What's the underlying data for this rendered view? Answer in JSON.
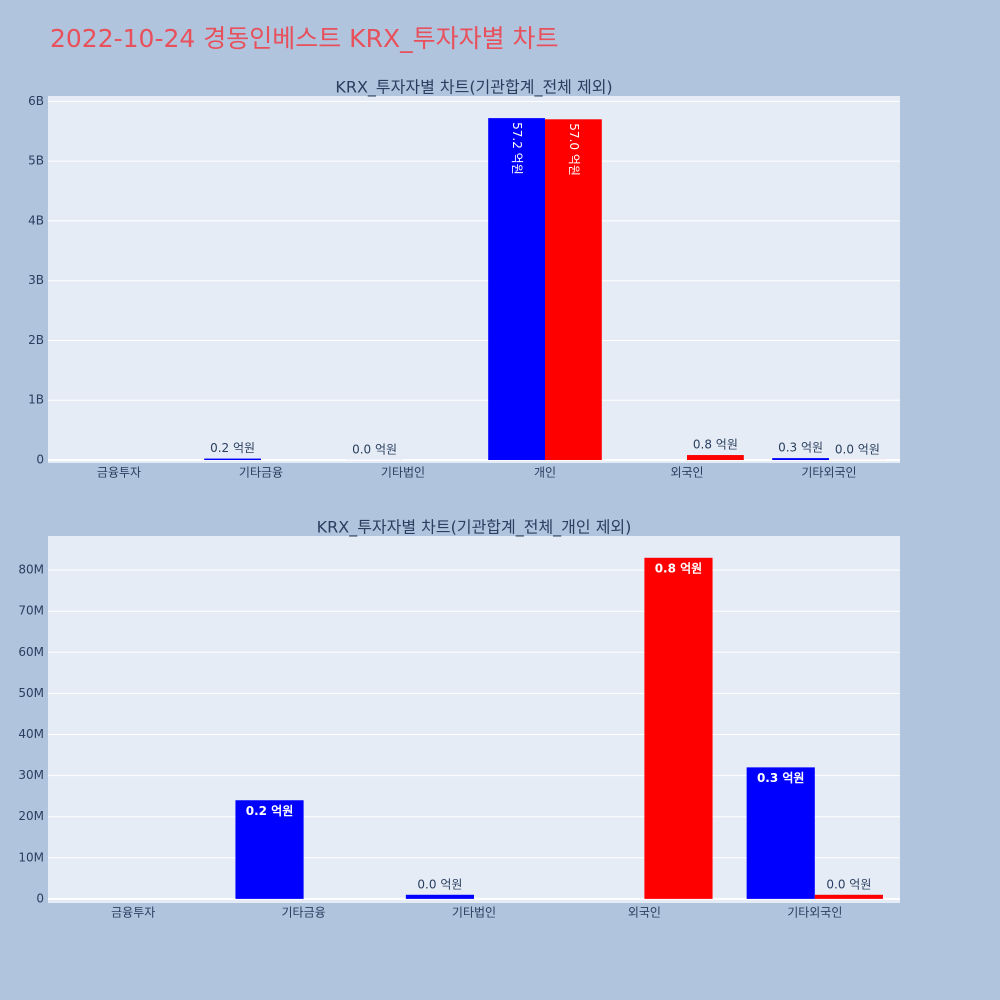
{
  "title": "2022-10-24 경동인베스트 KRX_투자자별 차트",
  "chart_data": [
    {
      "type": "bar",
      "title": "KRX_투자자별 차트(기관합계_전체 제외)",
      "categories": [
        "금융투자",
        "기타금융",
        "기타법인",
        "개인",
        "외국인",
        "기타외국인"
      ],
      "series": [
        {
          "color": "#0000ff",
          "values": [
            null,
            24000000,
            1000000,
            5720000000,
            null,
            32000000
          ],
          "value_labels": [
            null,
            "0.2 억원",
            "0.0 억원",
            "57.2 억원",
            null,
            "0.3 억원"
          ]
        },
        {
          "color": "#ff0000",
          "values": [
            null,
            null,
            null,
            5700000000,
            83000000,
            1000000
          ],
          "value_labels": [
            null,
            null,
            null,
            "57.0 억원",
            "0.8 억원",
            "0.0 억원"
          ]
        }
      ],
      "ylim": [
        -50000000,
        6090000000
      ],
      "yticks": [
        0,
        {
          "value": 1000000000,
          "label": "1B"
        },
        {
          "value": 2000000000,
          "label": "2B"
        },
        {
          "value": 3000000000,
          "label": "3B"
        },
        {
          "value": 4000000000,
          "label": "4B"
        },
        {
          "value": 5000000000,
          "label": "5B"
        },
        {
          "value": 6000000000,
          "label": "6B"
        }
      ],
      "grid": true
    },
    {
      "type": "bar",
      "title": "KRX_투자자별 차트(기관합계_전체_개인 제외)",
      "categories": [
        "금융투자",
        "기타금융",
        "기타법인",
        "외국인",
        "기타외국인"
      ],
      "series": [
        {
          "color": "#0000ff",
          "values": [
            null,
            24000000,
            1000000,
            null,
            32000000
          ],
          "value_labels": [
            null,
            "0.2 억원",
            "0.0 억원",
            null,
            "0.3 억원"
          ]
        },
        {
          "color": "#ff0000",
          "values": [
            null,
            null,
            null,
            83000000,
            1000000
          ],
          "value_labels": [
            null,
            null,
            null,
            "0.8 억원",
            "0.0 억원"
          ]
        }
      ],
      "ylim": [
        -1000000,
        88300000
      ],
      "yticks": [
        0,
        {
          "value": 10000000,
          "label": "10M"
        },
        {
          "value": 20000000,
          "label": "20M"
        },
        {
          "value": 30000000,
          "label": "30M"
        },
        {
          "value": 40000000,
          "label": "40M"
        },
        {
          "value": 50000000,
          "label": "50M"
        },
        {
          "value": 60000000,
          "label": "60M"
        },
        {
          "value": 70000000,
          "label": "70M"
        },
        {
          "value": 80000000,
          "label": "80M"
        }
      ],
      "grid": true
    }
  ]
}
